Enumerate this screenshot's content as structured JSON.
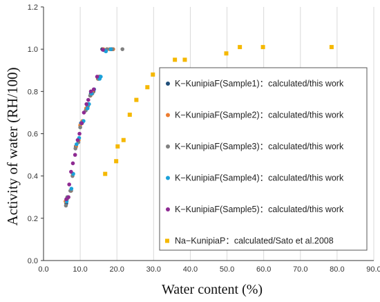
{
  "chart_data": {
    "type": "scatter",
    "xlabel": "Water content (%)",
    "ylabel": "Activity of water (RH/100)",
    "xlim": [
      0,
      90
    ],
    "ylim": [
      0,
      1.2
    ],
    "x_ticks": [
      "0.0",
      "10.0",
      "20.0",
      "30.0",
      "40.0",
      "50.0",
      "60.0",
      "70.0",
      "80.0",
      "90.0"
    ],
    "y_ticks": [
      "0.0",
      "0.2",
      "0.4",
      "0.6",
      "0.8",
      "1.0",
      "1.2"
    ],
    "grid": "vertical",
    "legend_position": "right",
    "series": [
      {
        "name": "K−KunipiaF(Sample1)：calculated/this work",
        "color": "#1f4e79",
        "marker": "circle",
        "points": [
          [
            6.2,
            0.27
          ],
          [
            6.5,
            0.3
          ],
          [
            7.5,
            0.33
          ],
          [
            8.0,
            0.41
          ],
          [
            8.8,
            0.54
          ],
          [
            9.5,
            0.57
          ],
          [
            10.2,
            0.65
          ],
          [
            10.8,
            0.66
          ],
          [
            11.8,
            0.72
          ],
          [
            12.2,
            0.74
          ],
          [
            12.9,
            0.79
          ],
          [
            13.6,
            0.8
          ],
          [
            15.0,
            0.86
          ],
          [
            15.3,
            0.87
          ],
          [
            16.0,
            1.0
          ],
          [
            16.8,
            0.995
          ],
          [
            18.5,
            1.0
          ]
        ]
      },
      {
        "name": "K−KunipiaF(Sample2)：calculated/this work",
        "color": "#ed7d31",
        "marker": "circle",
        "points": [
          [
            6.0,
            0.28
          ],
          [
            6.6,
            0.3
          ],
          [
            7.4,
            0.33
          ],
          [
            8.0,
            0.41
          ],
          [
            8.9,
            0.54
          ],
          [
            9.6,
            0.57
          ],
          [
            10.0,
            0.64
          ],
          [
            10.6,
            0.66
          ],
          [
            11.6,
            0.72
          ],
          [
            12.1,
            0.73
          ],
          [
            12.8,
            0.78
          ],
          [
            13.4,
            0.8
          ],
          [
            14.8,
            0.86
          ],
          [
            15.1,
            0.87
          ],
          [
            16.3,
            1.0
          ],
          [
            18.0,
            1.0
          ],
          [
            19.0,
            1.0
          ]
        ]
      },
      {
        "name": "K−KunipiaF(Sample3)：calculated/this work",
        "color": "#808080",
        "marker": "circle",
        "points": [
          [
            6.1,
            0.26
          ],
          [
            6.4,
            0.29
          ],
          [
            7.3,
            0.33
          ],
          [
            7.9,
            0.4
          ],
          [
            8.7,
            0.53
          ],
          [
            9.5,
            0.56
          ],
          [
            10.0,
            0.63
          ],
          [
            10.5,
            0.65
          ],
          [
            11.5,
            0.71
          ],
          [
            12.0,
            0.73
          ],
          [
            12.7,
            0.78
          ],
          [
            13.3,
            0.79
          ],
          [
            14.9,
            0.86
          ],
          [
            15.2,
            0.87
          ],
          [
            17.3,
            1.0
          ],
          [
            18.8,
            1.0
          ],
          [
            21.5,
            1.0
          ]
        ]
      },
      {
        "name": "K−KunipiaF(Sample4)：calculated/this work",
        "color": "#1ba1d9",
        "marker": "circle",
        "points": [
          [
            6.3,
            0.28
          ],
          [
            6.7,
            0.3
          ],
          [
            7.6,
            0.34
          ],
          [
            8.1,
            0.41
          ],
          [
            9.0,
            0.55
          ],
          [
            9.7,
            0.58
          ],
          [
            10.3,
            0.65
          ],
          [
            10.9,
            0.66
          ],
          [
            12.0,
            0.72
          ],
          [
            12.4,
            0.74
          ],
          [
            13.1,
            0.79
          ],
          [
            13.8,
            0.81
          ],
          [
            15.3,
            0.86
          ],
          [
            15.6,
            0.87
          ],
          [
            16.5,
            0.995
          ],
          [
            17.0,
            0.99
          ],
          [
            18.3,
            1.0
          ]
        ]
      },
      {
        "name": "K−KunipiaF(Sample5)：calculated/this work",
        "color": "#8e2a92",
        "marker": "circle",
        "points": [
          [
            6.2,
            0.29
          ],
          [
            6.8,
            0.3
          ],
          [
            7.0,
            0.36
          ],
          [
            7.5,
            0.42
          ],
          [
            8.0,
            0.46
          ],
          [
            8.6,
            0.5
          ],
          [
            9.3,
            0.57
          ],
          [
            9.8,
            0.6
          ],
          [
            10.4,
            0.65
          ],
          [
            11.0,
            0.7
          ],
          [
            11.7,
            0.74
          ],
          [
            12.2,
            0.76
          ],
          [
            12.9,
            0.8
          ],
          [
            13.7,
            0.81
          ],
          [
            14.6,
            0.87
          ],
          [
            16.2,
            0.997
          ]
        ]
      },
      {
        "name": "Na−KunipiaP：calculated/Sato et al.2008",
        "color": "#f5b800",
        "marker": "square",
        "points": [
          [
            16.8,
            0.41
          ],
          [
            19.8,
            0.47
          ],
          [
            20.2,
            0.54
          ],
          [
            21.8,
            0.57
          ],
          [
            23.5,
            0.69
          ],
          [
            25.3,
            0.76
          ],
          [
            28.3,
            0.82
          ],
          [
            29.8,
            0.88
          ],
          [
            35.8,
            0.95
          ],
          [
            38.5,
            0.95
          ],
          [
            49.8,
            0.98
          ],
          [
            53.5,
            1.01
          ],
          [
            59.8,
            1.01
          ],
          [
            78.5,
            1.01
          ]
        ]
      }
    ]
  }
}
